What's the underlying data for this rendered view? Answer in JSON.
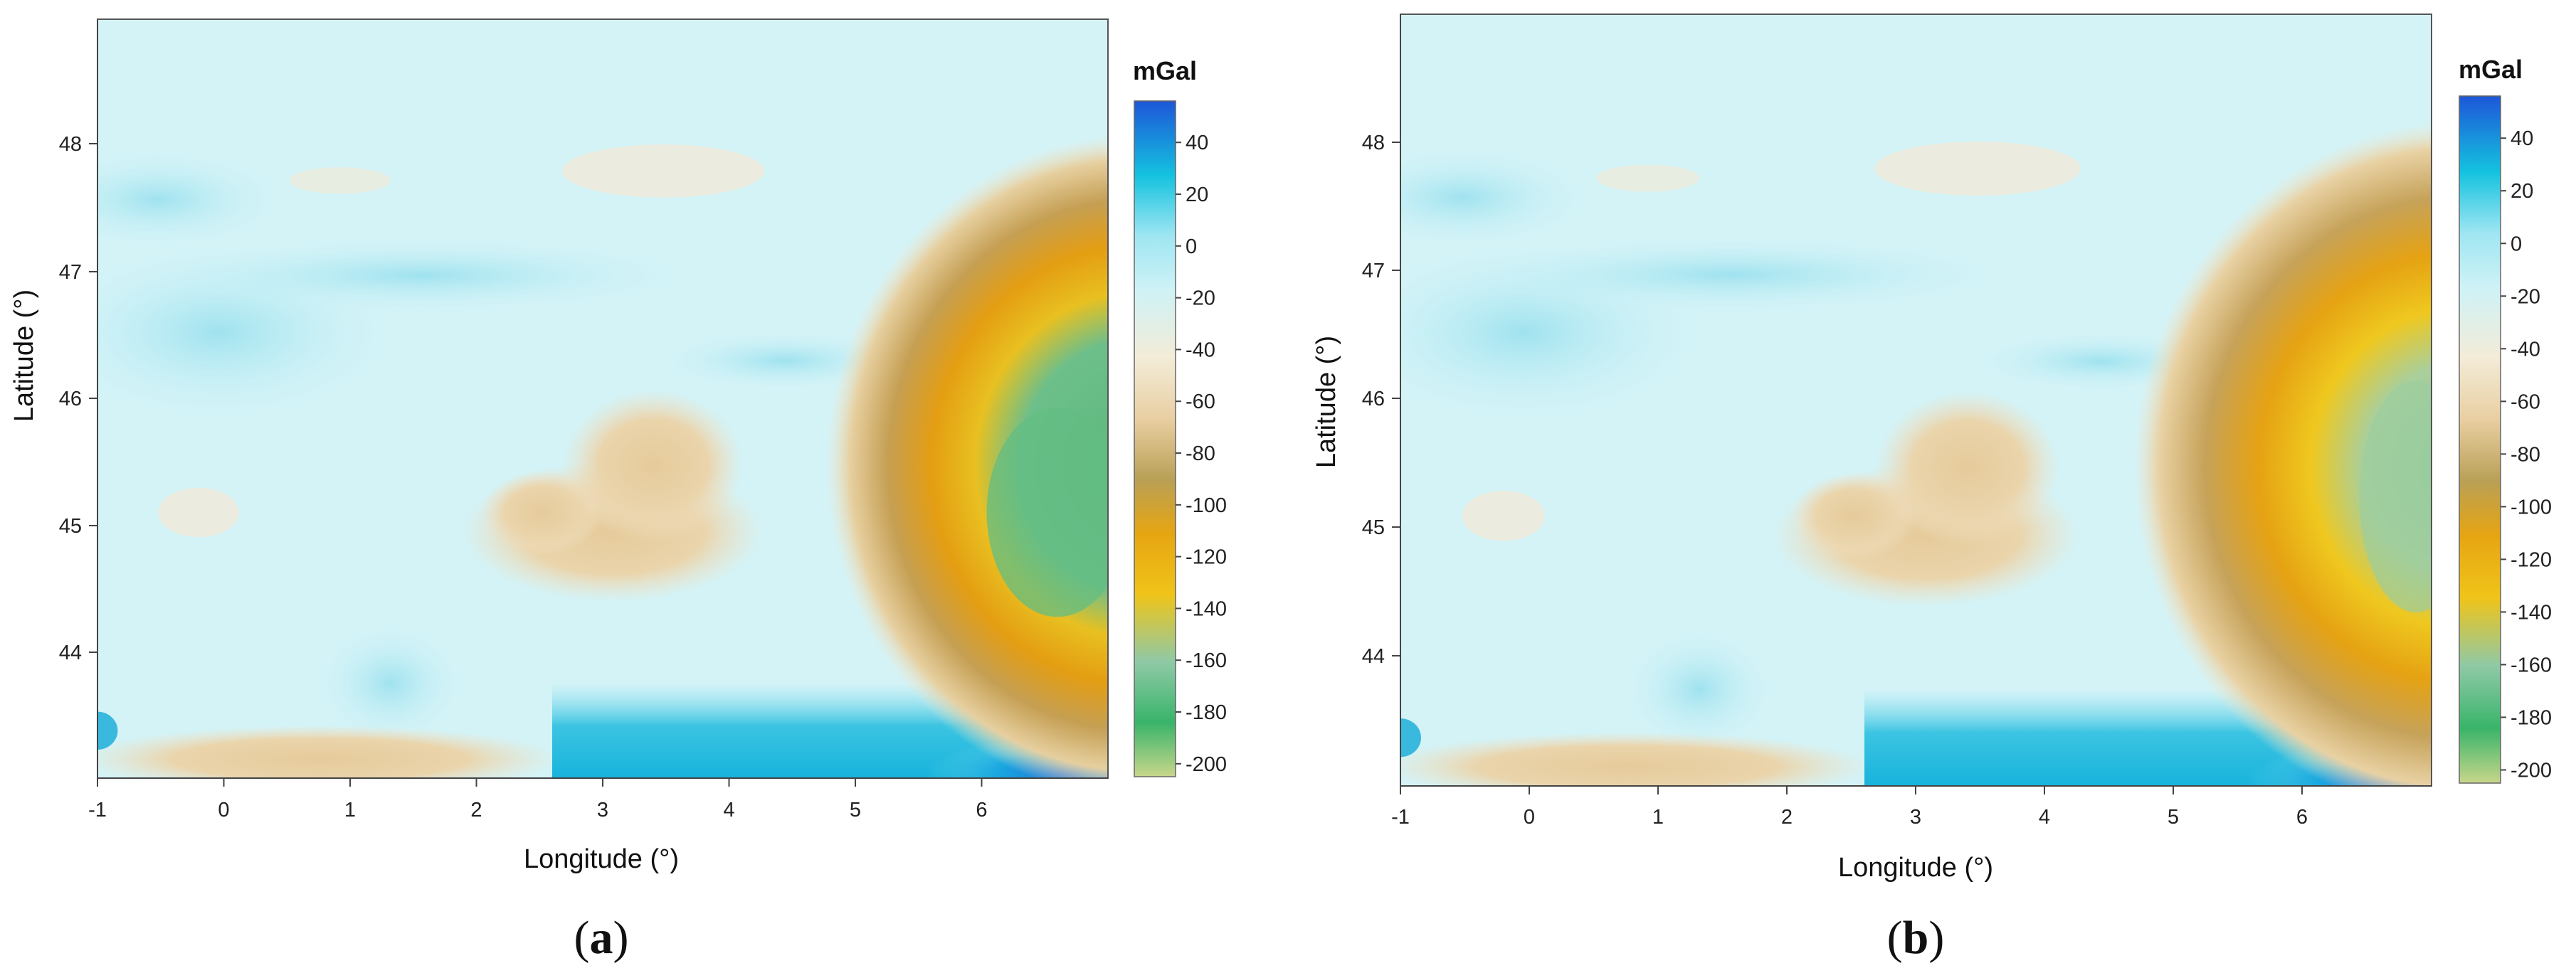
{
  "shared": {
    "xlabel": "Longitude (°)",
    "ylabel": "Latitude (°)",
    "unit": "mGal"
  },
  "panels": [
    {
      "label": "a",
      "x_ticks": [
        "-1",
        "0",
        "1",
        "2",
        "3",
        "4",
        "5",
        "6"
      ],
      "y_ticks": [
        "48",
        "47",
        "46",
        "45",
        "44"
      ],
      "colorbar_ticks": [
        "40",
        "20",
        "0",
        "-20",
        "-40",
        "-60",
        "-80",
        "-100",
        "-120",
        "-140",
        "-160",
        "-180",
        "-200"
      ]
    },
    {
      "label": "b",
      "x_ticks": [
        "-1",
        "0",
        "1",
        "2",
        "3",
        "4",
        "5",
        "6"
      ],
      "y_ticks": [
        "48",
        "47",
        "46",
        "45",
        "44"
      ],
      "colorbar_ticks": [
        "40",
        "20",
        "0",
        "-20",
        "-40",
        "-60",
        "-80",
        "-100",
        "-120",
        "-140",
        "-160",
        "-180",
        "-200"
      ]
    }
  ],
  "map_extent": {
    "lon": [
      -1,
      7
    ],
    "lat": [
      43,
      49
    ]
  },
  "colorbar": {
    "range": [
      -205,
      56
    ],
    "colors": [
      "#c8d68a",
      "#39b46a",
      "#8fc9a6",
      "#f0c419",
      "#e6a512",
      "#b9a056",
      "#e9cfa2",
      "#f3ecd8",
      "#cff2f6",
      "#9fe6f2",
      "#14c2df",
      "#1d56d8"
    ]
  }
}
